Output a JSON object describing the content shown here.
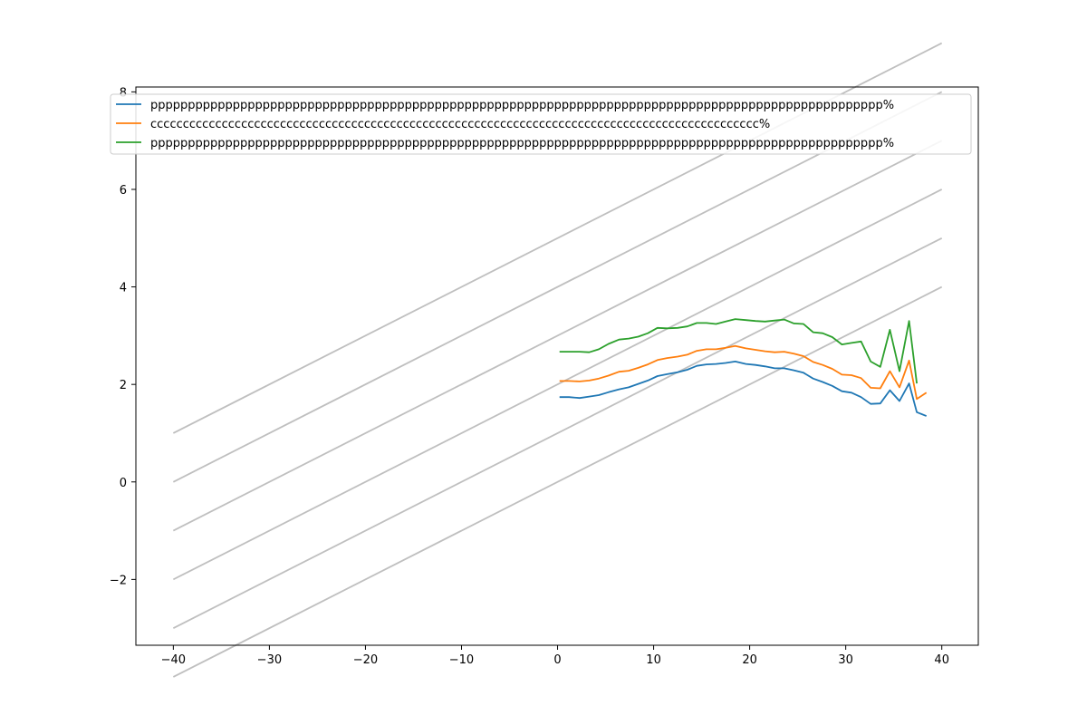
{
  "chart_data": {
    "type": "line",
    "title": "",
    "xlabel": "",
    "ylabel": "",
    "xlim": [
      -43.9,
      43.8
    ],
    "ylim": [
      -3.35,
      8.1
    ],
    "xticks": [
      -40,
      -30,
      -20,
      -10,
      0,
      10,
      20,
      30,
      40
    ],
    "yticks": [
      -2,
      0,
      2,
      4,
      6,
      8
    ],
    "grid": false,
    "legend_position": "top",
    "reference_lines": {
      "color": "#bfbfbf",
      "slope": 0.1,
      "intercepts": [
        0,
        1,
        2,
        3,
        4,
        5
      ],
      "x_range": [
        -40,
        40
      ]
    },
    "series": [
      {
        "name": "pppppppppppppppppppppppppppppppppppppppppppppppppppppppppppppppppppppppppppppppppppppppppppppppppp%",
        "color": "#1f77b4",
        "x": [
          0.2,
          1.2,
          2.3,
          3.3,
          4.3,
          5.3,
          6.4,
          7.4,
          8.4,
          9.4,
          10.4,
          11.4,
          12.5,
          13.5,
          14.5,
          15.5,
          16.5,
          17.5,
          18.5,
          19.6,
          20.6,
          21.6,
          22.6,
          23.6,
          24.6,
          25.6,
          26.6,
          27.6,
          28.6,
          29.6,
          30.6,
          31.6,
          32.6,
          33.6,
          34.6,
          35.6,
          36.6,
          37.4,
          38.4
        ],
        "y": [
          1.74,
          1.74,
          1.72,
          1.75,
          1.78,
          1.84,
          1.9,
          1.94,
          2.01,
          2.08,
          2.17,
          2.21,
          2.25,
          2.3,
          2.38,
          2.41,
          2.42,
          2.44,
          2.47,
          2.42,
          2.4,
          2.37,
          2.33,
          2.33,
          2.29,
          2.24,
          2.12,
          2.05,
          1.97,
          1.86,
          1.83,
          1.74,
          1.6,
          1.61,
          1.88,
          1.66,
          2.02,
          1.43,
          1.35
        ]
      },
      {
        "name": "cccccccccccccccccccccccccccccccccccccccccccccccccccccccccccccccccccccccccccccccccccccccccccccc%",
        "color": "#ff7f0e",
        "x": [
          0.2,
          1.2,
          2.3,
          3.3,
          4.3,
          5.3,
          6.4,
          7.4,
          8.4,
          9.4,
          10.4,
          11.4,
          12.5,
          13.5,
          14.5,
          15.5,
          16.5,
          17.5,
          18.5,
          19.6,
          20.6,
          21.6,
          22.6,
          23.6,
          24.6,
          25.6,
          26.6,
          27.6,
          28.6,
          29.6,
          30.6,
          31.6,
          32.6,
          33.6,
          34.6,
          35.6,
          36.6,
          37.4,
          38.4
        ],
        "y": [
          2.07,
          2.07,
          2.06,
          2.08,
          2.12,
          2.18,
          2.26,
          2.28,
          2.34,
          2.41,
          2.5,
          2.54,
          2.57,
          2.61,
          2.69,
          2.72,
          2.72,
          2.75,
          2.79,
          2.74,
          2.71,
          2.68,
          2.66,
          2.67,
          2.63,
          2.58,
          2.46,
          2.4,
          2.32,
          2.2,
          2.19,
          2.13,
          1.93,
          1.92,
          2.27,
          1.94,
          2.49,
          1.7,
          1.83
        ]
      },
      {
        "name": "pppppppppppppppppppppppppppppppppppppppppppppppppppppppppppppppppppppppppppppppppppppppppppppppppp%",
        "color": "#2ca02c",
        "x": [
          0.2,
          1.2,
          2.3,
          3.3,
          4.3,
          5.3,
          6.4,
          7.4,
          8.4,
          9.4,
          10.4,
          11.4,
          12.5,
          13.5,
          14.5,
          15.5,
          16.5,
          17.5,
          18.5,
          19.6,
          20.6,
          21.6,
          22.6,
          23.6,
          24.6,
          25.6,
          26.6,
          27.6,
          28.6,
          29.6,
          30.6,
          31.6,
          32.6,
          33.6,
          34.6,
          35.6,
          36.6,
          37.4
        ],
        "y": [
          2.67,
          2.67,
          2.67,
          2.66,
          2.72,
          2.83,
          2.92,
          2.94,
          2.98,
          3.05,
          3.16,
          3.15,
          3.16,
          3.19,
          3.26,
          3.26,
          3.24,
          3.29,
          3.34,
          3.32,
          3.3,
          3.29,
          3.31,
          3.33,
          3.25,
          3.24,
          3.07,
          3.05,
          2.97,
          2.82,
          2.85,
          2.88,
          2.47,
          2.36,
          3.12,
          2.27,
          3.3,
          2.02
        ]
      }
    ]
  }
}
